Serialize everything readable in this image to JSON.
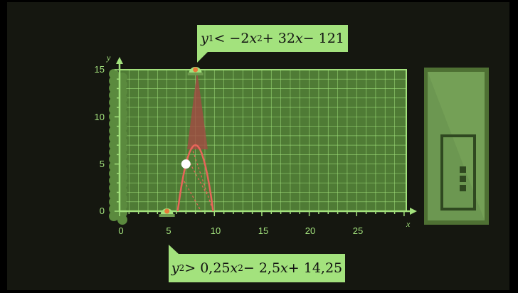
{
  "inequality_top": {
    "var": "y",
    "sub": "1",
    "op": " < −2",
    "x": "x",
    "sq": "2",
    "rest": " + 32",
    "x2": "x",
    "tail": " − 121"
  },
  "inequality_bottom": {
    "var": "y",
    "sub": "2",
    "op": " > 0,25",
    "x": "x",
    "sq": "2",
    "rest": " − 2,5",
    "x2": "x",
    "tail": " + 14,25"
  },
  "axes": {
    "x_label": "x",
    "y_label": "y",
    "x_ticks": [
      "0",
      "5",
      "10",
      "15",
      "20",
      "25"
    ],
    "y_ticks": [
      "0",
      "5",
      "10",
      "15"
    ],
    "x_range": [
      0,
      30
    ],
    "y_range": [
      0,
      15
    ]
  },
  "launchers": [
    {
      "name": "top-launcher",
      "x": 8,
      "y": 15
    },
    {
      "name": "bottom-launcher",
      "x": 5,
      "y": 0
    }
  ],
  "ball": {
    "x": 7,
    "y": 5
  },
  "colors": {
    "grid": "#a3e27d",
    "grid_fill": "#4f7b35",
    "curve": "#e8655a",
    "cone": "#a34b43",
    "ball": "#ffffff",
    "exit_door": "#74a056"
  }
}
